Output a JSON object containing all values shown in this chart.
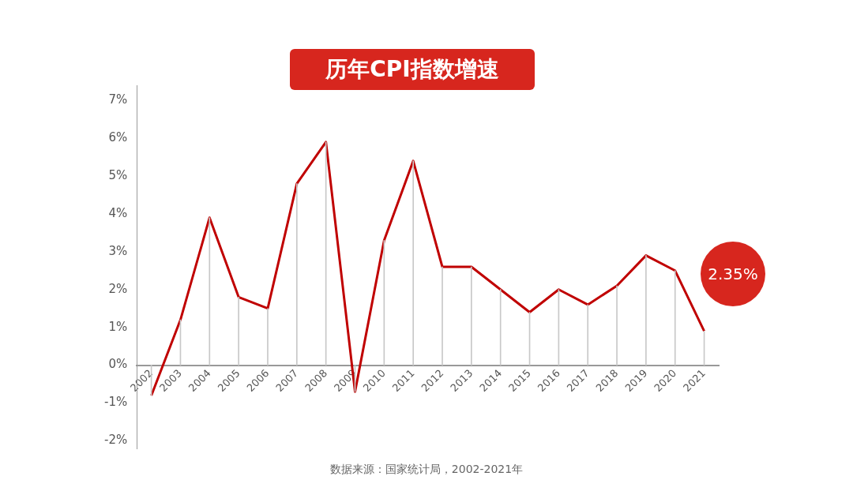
{
  "chart_data": {
    "type": "line",
    "title": "历年CPI指数增速",
    "categories": [
      "2002",
      "2003",
      "2004",
      "2005",
      "2006",
      "2007",
      "2008",
      "2009",
      "2010",
      "2011",
      "2012",
      "2013",
      "2014",
      "2015",
      "2016",
      "2017",
      "2018",
      "2019",
      "2020",
      "2021"
    ],
    "series": [
      {
        "type": "bar",
        "color": "#c8c8c8",
        "values": [
          -0.8,
          1.2,
          3.9,
          1.8,
          1.5,
          4.8,
          5.9,
          -0.7,
          3.3,
          5.4,
          2.6,
          2.6,
          2.0,
          1.4,
          2.0,
          1.6,
          2.1,
          2.9,
          2.5,
          0.9
        ]
      },
      {
        "color": "#c00000",
        "values": [
          -0.8,
          1.2,
          3.9,
          1.8,
          1.5,
          4.8,
          5.9,
          -0.7,
          3.3,
          5.4,
          2.6,
          2.6,
          2.0,
          1.4,
          2.0,
          1.6,
          2.1,
          2.9,
          2.5,
          0.9
        ]
      }
    ],
    "ylim": [
      -2.2,
      7.4
    ],
    "yticks": [
      {
        "value": -2,
        "label": "-2%"
      },
      {
        "value": -1,
        "label": "-1%"
      },
      {
        "value": 0,
        "label": "0%"
      },
      {
        "value": 1,
        "label": "1%"
      },
      {
        "value": 2,
        "label": "2%"
      },
      {
        "value": 3,
        "label": "3%"
      },
      {
        "value": 4,
        "label": "4%"
      },
      {
        "value": 5,
        "label": "5%"
      },
      {
        "value": 6,
        "label": "6%"
      },
      {
        "value": 7,
        "label": "7%"
      }
    ],
    "legend": false,
    "marker": "none",
    "line_style": "solid",
    "annotations": [
      "2.35%",
      "数据来源：国家统计局，2002-2021年"
    ]
  }
}
